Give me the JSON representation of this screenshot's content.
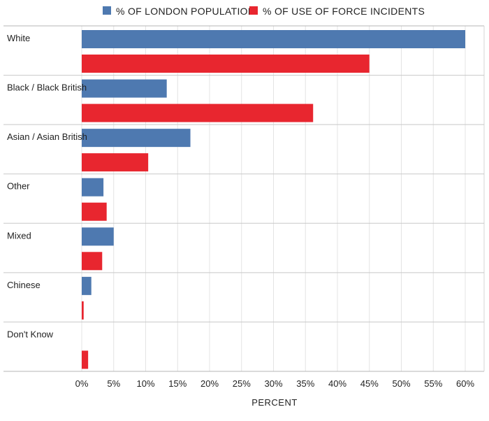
{
  "chart_data": {
    "type": "bar",
    "orientation": "horizontal",
    "categories": [
      "White",
      "Black / Black British",
      "Asian / Asian British",
      "Other",
      "Mixed",
      "Chinese",
      "Don't Know"
    ],
    "series": [
      {
        "name": "% OF LONDON POPULATION",
        "color": "#4e79b0",
        "values": [
          60,
          13.3,
          17,
          3.4,
          5,
          1.5,
          0
        ]
      },
      {
        "name": "% OF USE OF FORCE INCIDENTS",
        "color": "#e8262f",
        "values": [
          45,
          36.2,
          10.4,
          3.9,
          3.2,
          0.3,
          1
        ]
      }
    ],
    "x_ticks": [
      "0%",
      "5%",
      "10%",
      "15%",
      "20%",
      "25%",
      "30%",
      "35%",
      "40%",
      "45%",
      "50%",
      "55%",
      "60%"
    ],
    "xlim": [
      0,
      60
    ],
    "xlabel": "PERCENT",
    "ylabel": "",
    "title": "",
    "legend": "top",
    "grid": true
  }
}
